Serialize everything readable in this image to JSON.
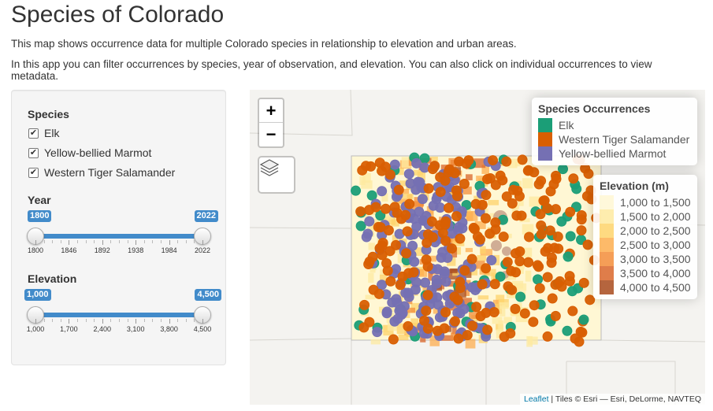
{
  "page": {
    "title": "Species of Colorado",
    "intro1": "This map shows occurrence data for multiple Colorado species in relationship to elevation and urban areas.",
    "intro2": "In this app you can filter occurrences by species, year of observation, and elevation. You can also click on individual occurrences to view metadata."
  },
  "filters": {
    "species_label": "Species",
    "species": [
      {
        "label": "Elk",
        "checked": true
      },
      {
        "label": "Yellow-bellied Marmot",
        "checked": true
      },
      {
        "label": "Western Tiger Salamander",
        "checked": true
      }
    ],
    "year": {
      "label": "Year",
      "min": 1800,
      "max": 2022,
      "from": "1800",
      "to": "2022",
      "ticks": [
        "1800",
        "1846",
        "1892",
        "1938",
        "1984",
        "2022"
      ]
    },
    "elevation": {
      "label": "Elevation",
      "min": 1000,
      "max": 4500,
      "from": "1,000",
      "to": "4,500",
      "ticks": [
        "1,000",
        "1,700",
        "2,400",
        "3,100",
        "3,800",
        "4,500"
      ]
    }
  },
  "map": {
    "zoom_in": "+",
    "zoom_out": "−",
    "layers_icon": "layers-icon",
    "occurrence_legend": {
      "title": "Species Occurrences",
      "items": [
        {
          "label": "Elk",
          "color": "#1b9e77"
        },
        {
          "label": "Western Tiger Salamander",
          "color": "#d95f02"
        },
        {
          "label": "Yellow-bellied Marmot",
          "color": "#7570b3"
        }
      ]
    },
    "elevation_legend": {
      "title": "Elevation (m)",
      "items": [
        {
          "label": "1,000 to 1,500",
          "color": "#fff7d4"
        },
        {
          "label": "1,500 to 2,000",
          "color": "#feeaa0"
        },
        {
          "label": "2,000 to 2,500",
          "color": "#fed36b"
        },
        {
          "label": "2,500 to 3,000",
          "color": "#fdae4f"
        },
        {
          "label": "3,000 to 3,500",
          "color": "#f38d3a"
        },
        {
          "label": "3,500 to 4,000",
          "color": "#d9662a"
        },
        {
          "label": "4,000 to 4,500",
          "color": "#a84a1c"
        }
      ]
    },
    "attribution_leaflet": "Leaflet",
    "attribution_rest": " | Tiles © Esri — Esri, DeLorme, NAVTEQ"
  }
}
